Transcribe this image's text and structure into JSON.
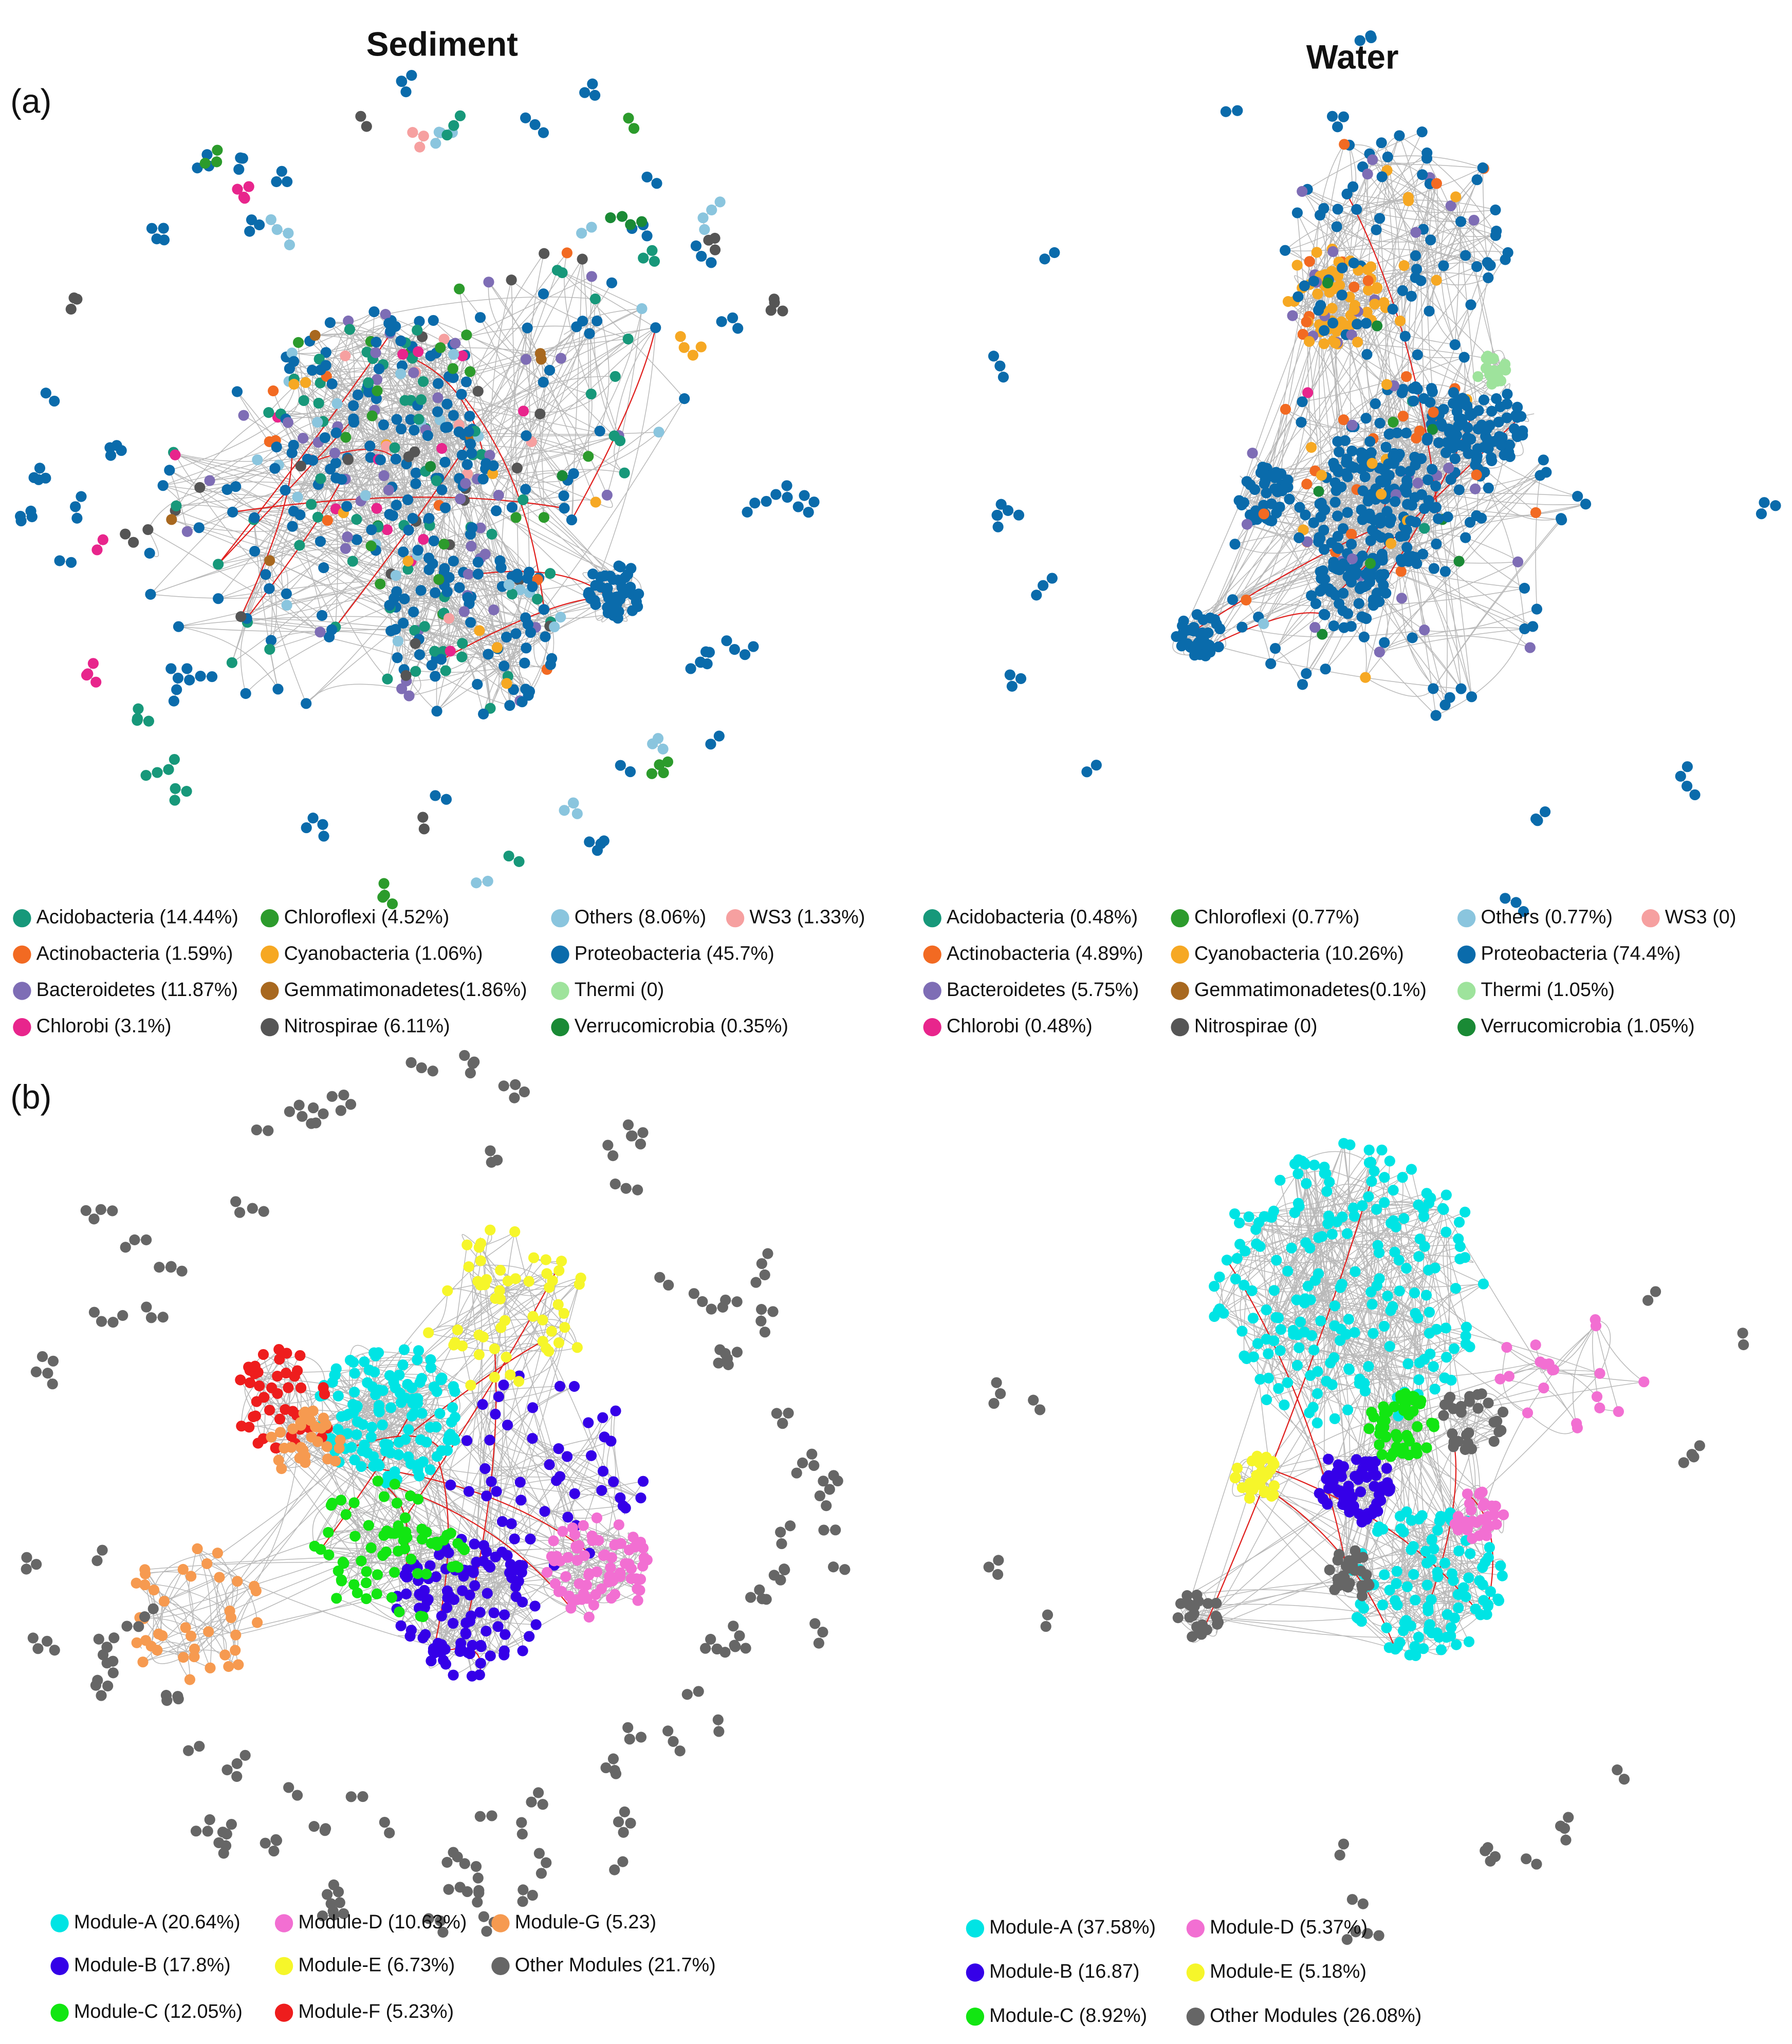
{
  "header": {
    "columns": [
      "Sediment",
      "Water"
    ]
  },
  "panels": [
    {
      "label": "(a)",
      "networks": [
        {
          "legend": [
            {
              "label": "Acidobacteria (14.44%)",
              "color": "#17987a"
            },
            {
              "label": "Actinobacteria (1.59%)",
              "color": "#f26a22"
            },
            {
              "label": "Bacteroidetes (11.87%)",
              "color": "#7e6db5"
            },
            {
              "label": "Chlorobi (3.1%)",
              "color": "#e8258c"
            },
            {
              "label": "Chloroflexi (4.52%)",
              "color": "#2c9b2c"
            },
            {
              "label": "Cyanobacteria (1.06%)",
              "color": "#f6a823"
            },
            {
              "label": "Gemmatimonadetes(1.86%)",
              "color": "#a8681f"
            },
            {
              "label": "Nitrospirae (6.11%)",
              "color": "#555555"
            },
            {
              "label": "Others (8.06%)",
              "color": "#8ac5de"
            },
            {
              "label": "Proteobacteria (45.7%)",
              "color": "#0a6bab"
            },
            {
              "label": "Thermi (0)",
              "color": "#9ee39c"
            },
            {
              "label": "Verrucomicrobia (0.35%)",
              "color": "#1a8a35"
            },
            {
              "label": "WS3 (1.33%)",
              "color": "#f6a0a0"
            }
          ]
        },
        {
          "legend": [
            {
              "label": "Acidobacteria (0.48%)",
              "color": "#17987a"
            },
            {
              "label": "Actinobacteria (4.89%)",
              "color": "#f26a22"
            },
            {
              "label": "Bacteroidetes (5.75%)",
              "color": "#7e6db5"
            },
            {
              "label": "Chlorobi (0.48%)",
              "color": "#e8258c"
            },
            {
              "label": "Chloroflexi (0.77%)",
              "color": "#2c9b2c"
            },
            {
              "label": "Cyanobacteria (10.26%)",
              "color": "#f6a823"
            },
            {
              "label": "Gemmatimonadetes(0.1%)",
              "color": "#a8681f"
            },
            {
              "label": "Nitrospirae (0)",
              "color": "#555555"
            },
            {
              "label": "Others (0.77%)",
              "color": "#8ac5de"
            },
            {
              "label": "Proteobacteria (74.4%)",
              "color": "#0a6bab"
            },
            {
              "label": "Thermi (1.05%)",
              "color": "#9ee39c"
            },
            {
              "label": "Verrucomicrobia (1.05%)",
              "color": "#1a8a35"
            },
            {
              "label": "WS3 (0)",
              "color": "#f6a0a0"
            }
          ]
        }
      ]
    },
    {
      "label": "(b)",
      "networks": [
        {
          "legend": [
            {
              "label": "Module-A (20.64%)",
              "color": "#00e4e4"
            },
            {
              "label": "Module-B (17.8%)",
              "color": "#3500e8"
            },
            {
              "label": "Module-C (12.05%)",
              "color": "#12e612"
            },
            {
              "label": "Module-D (10.63%)",
              "color": "#f26fd2"
            },
            {
              "label": "Module-E (6.73%)",
              "color": "#f6f62a"
            },
            {
              "label": "Module-F (5.23%)",
              "color": "#ee1d1d"
            },
            {
              "label": "Module-G (5.23)",
              "color": "#f69a50"
            },
            {
              "label": "Other Modules (21.7%)",
              "color": "#666666"
            }
          ]
        },
        {
          "legend": [
            {
              "label": "Module-A (37.58%)",
              "color": "#00e4e4"
            },
            {
              "label": "Module-B (16.87)",
              "color": "#3500e8"
            },
            {
              "label": "Module-C (8.92%)",
              "color": "#12e612"
            },
            {
              "label": "Module-D (5.37%)",
              "color": "#f26fd2"
            },
            {
              "label": "Module-E (5.18%)",
              "color": "#f6f62a"
            },
            {
              "label": "Other Modules (26.08%)",
              "color": "#666666"
            }
          ]
        }
      ]
    }
  ]
}
